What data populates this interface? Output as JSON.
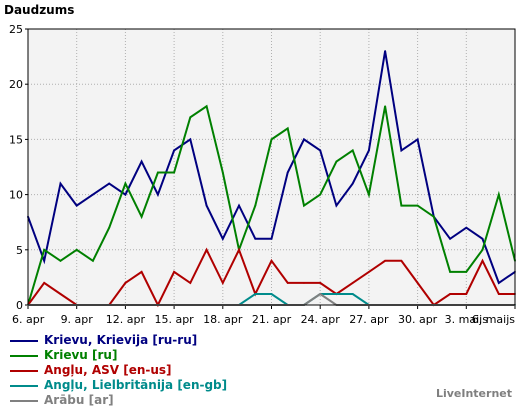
{
  "chart_data": {
    "type": "line",
    "ylabel": "Daudzums",
    "ylim": [
      0,
      25
    ],
    "yticks": [
      0,
      5,
      10,
      15,
      20,
      25
    ],
    "grid": true,
    "legend_position": "bottom-left",
    "x": [
      "6. apr",
      "7. apr",
      "8. apr",
      "9. apr",
      "10. apr",
      "11. apr",
      "12. apr",
      "13. apr",
      "14. apr",
      "15. apr",
      "16. apr",
      "17. apr",
      "18. apr",
      "19. apr",
      "20. apr",
      "21. apr",
      "22. apr",
      "23. apr",
      "24. apr",
      "25. apr",
      "26. apr",
      "27. apr",
      "28. apr",
      "29. apr",
      "30. apr",
      "1. maijs",
      "2. maijs",
      "3. maijs",
      "4. maijs",
      "5. maijs",
      "6. maijs"
    ],
    "x_tick_labels": [
      "6. apr",
      "9. apr",
      "12. apr",
      "15. apr",
      "18. apr",
      "21. apr",
      "24. apr",
      "27. apr",
      "30. apr",
      "3. maijs",
      "6. maijs"
    ],
    "series": [
      {
        "name": "Krievu, Krievija [ru-ru]",
        "color": "#000080",
        "values": [
          8,
          4,
          11,
          9,
          10,
          11,
          10,
          13,
          10,
          14,
          15,
          9,
          6,
          9,
          6,
          6,
          12,
          15,
          14,
          9,
          11,
          14,
          23,
          14,
          15,
          8,
          6,
          7,
          6,
          2,
          3
        ]
      },
      {
        "name": "Krievu [ru]",
        "color": "#008000",
        "values": [
          0,
          5,
          4,
          5,
          4,
          7,
          11,
          8,
          12,
          12,
          17,
          18,
          12,
          5,
          9,
          15,
          16,
          9,
          10,
          13,
          14,
          10,
          18,
          9,
          9,
          8,
          3,
          3,
          5,
          10,
          4
        ]
      },
      {
        "name": "Angļu, ASV [en-us]",
        "color": "#b00000",
        "values": [
          0,
          2,
          1,
          0,
          0,
          0,
          2,
          3,
          0,
          3,
          2,
          5,
          2,
          5,
          1,
          4,
          2,
          2,
          2,
          1,
          2,
          3,
          4,
          4,
          2,
          0,
          1,
          1,
          4,
          1,
          1
        ]
      },
      {
        "name": "Angļu, Lielbritānija [en-gb]",
        "color": "#008b8b",
        "values": [
          0,
          0,
          0,
          0,
          0,
          0,
          0,
          0,
          0,
          0,
          0,
          0,
          0,
          0,
          1,
          1,
          0,
          0,
          1,
          1,
          1,
          0,
          0,
          0,
          0,
          0,
          0,
          0,
          0,
          0,
          0
        ]
      },
      {
        "name": "Arābu [ar]",
        "color": "#808080",
        "values": [
          0,
          0,
          0,
          0,
          0,
          0,
          0,
          0,
          0,
          0,
          0,
          0,
          0,
          0,
          0,
          0,
          0,
          0,
          1,
          0,
          0,
          0,
          0,
          0,
          0,
          0,
          0,
          0,
          0,
          0,
          0
        ]
      }
    ]
  },
  "brand": "LiveInternet"
}
